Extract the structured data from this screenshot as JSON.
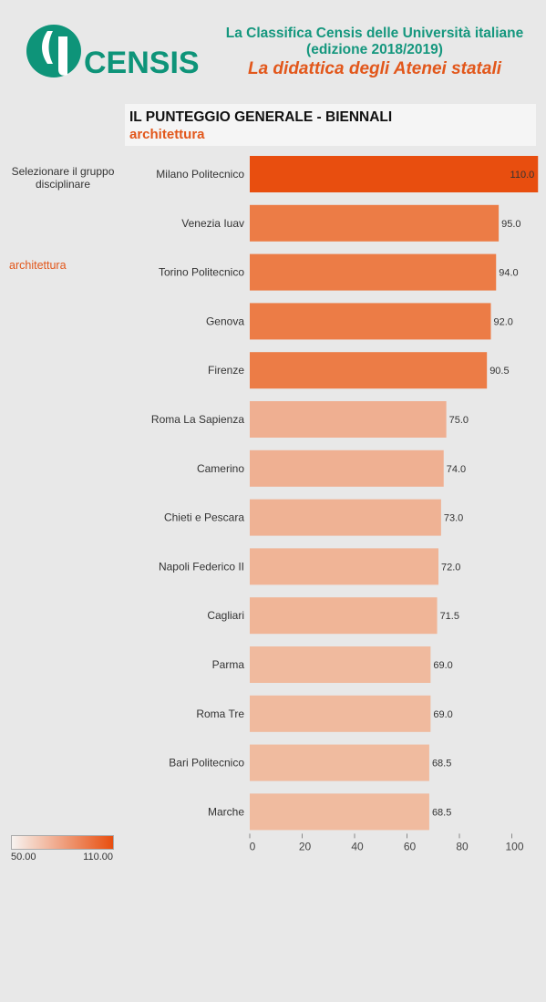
{
  "header": {
    "title_line1": "La Classifica Censis delle Università italiane",
    "title_line2": "(edizione 2018/2019)",
    "subtitle": "La didattica degli Atenei statali",
    "logo_text": "CENSIS",
    "logo_color": "#0e9479"
  },
  "panel": {
    "title": "IL PUNTEGGIO GENERALE - BIENNALI",
    "subtitle": "architettura"
  },
  "filter": {
    "label": "Selezionare il gruppo disciplinare",
    "selected": "architettura"
  },
  "legend": {
    "min_label": "50.00",
    "max_label": "110.00",
    "color_min": "#f7f3f0",
    "color_max": "#e84e0f"
  },
  "chart_data": {
    "type": "bar",
    "orientation": "horizontal",
    "categories": [
      "Milano Politecnico",
      "Venezia Iuav",
      "Torino Politecnico",
      "Genova",
      "Firenze",
      "Roma La Sapienza",
      "Camerino",
      "Chieti e Pescara",
      "Napoli Federico II",
      "Cagliari",
      "Parma",
      "Roma Tre",
      "Bari Politecnico",
      "Marche"
    ],
    "values": [
      110.0,
      95.0,
      94.0,
      92.0,
      90.5,
      75.0,
      74.0,
      73.0,
      72.0,
      71.5,
      69.0,
      69.0,
      68.5,
      68.5
    ],
    "value_labels": [
      "110.0",
      "95.0",
      "94.0",
      "92.0",
      "90.5",
      "75.0",
      "74.0",
      "73.0",
      "72.0",
      "71.5",
      "69.0",
      "69.0",
      "68.5",
      "68.5"
    ],
    "bar_colors": [
      "#e84e0f",
      "#ec7c46",
      "#ec7c46",
      "#ec7c46",
      "#ec7c46",
      "#efaf91",
      "#efb092",
      "#efb294",
      "#f0b496",
      "#f0b597",
      "#f0ba9e",
      "#f0ba9e",
      "#f0bb9f",
      "#f0bb9f"
    ],
    "x_ticks": [
      "0",
      "20",
      "40",
      "60",
      "80",
      "100"
    ],
    "xlim": [
      0,
      110
    ],
    "grid": false
  }
}
